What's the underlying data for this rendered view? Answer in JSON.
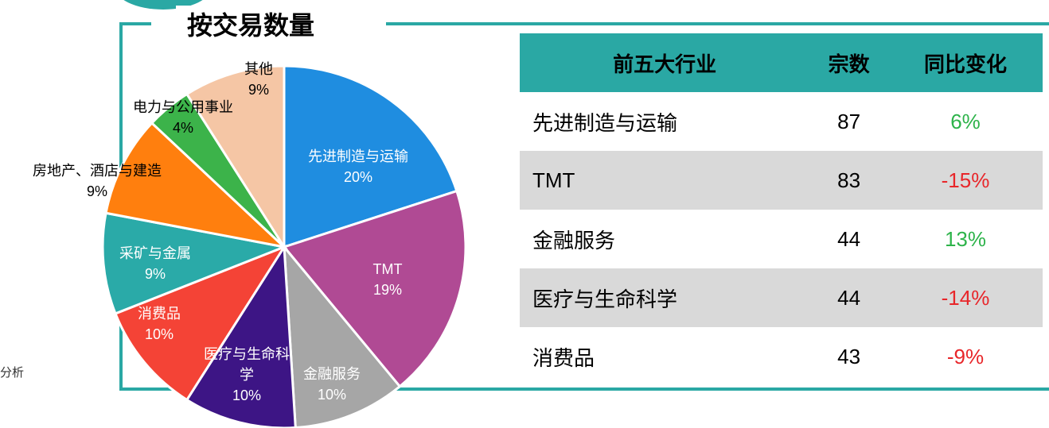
{
  "title": "按交易数量",
  "footnote": "分析",
  "chart_data": {
    "type": "pie",
    "categories": [
      "先进制造与运输",
      "TMT",
      "金融服务",
      "医疗与生命科学",
      "消费品",
      "采矿与金属",
      "房地产、酒店与建造",
      "电力与公用事业",
      "其他"
    ],
    "values": [
      20,
      19,
      10,
      10,
      10,
      9,
      9,
      4,
      9
    ],
    "value_labels": [
      "20%",
      "19%",
      "10%",
      "10%",
      "10%",
      "9%",
      "9%",
      "4%",
      "9%"
    ],
    "colors": [
      "#1f8de0",
      "#b04a94",
      "#a6a6a6",
      "#3d1585",
      "#f44336",
      "#2aaaa8",
      "#ff7f0e",
      "#3cb34a",
      "#f5c6a5"
    ]
  },
  "table": {
    "header": [
      "前五大行业",
      "宗数",
      "同比变化"
    ],
    "rows": [
      [
        "先进制造与运输",
        "87",
        "6%"
      ],
      [
        "TMT",
        "83",
        "-15%"
      ],
      [
        "金融服务",
        "44",
        "13%"
      ],
      [
        "医疗与生命科学",
        "44",
        "-14%"
      ],
      [
        "消费品",
        "43",
        "-9%"
      ]
    ],
    "change_colors": [
      "#2db34a",
      "#e8262a",
      "#2db34a",
      "#e8262a",
      "#e8262a"
    ]
  }
}
